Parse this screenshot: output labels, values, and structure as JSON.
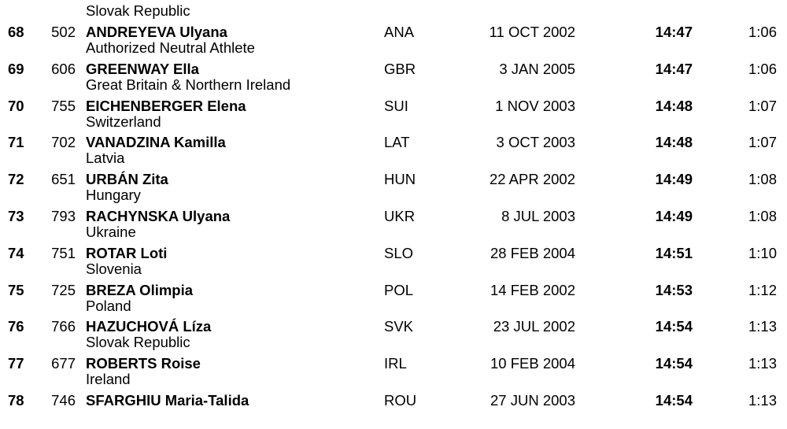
{
  "top_continuation": "Slovak Republic",
  "rows": [
    {
      "rank": "68",
      "bib": "502",
      "name": "ANDREYEVA Ulyana",
      "nation": "Authorized Neutral Athlete",
      "code": "ANA",
      "dob": "11 OCT 2002",
      "time": "14:47",
      "gap": "1:06"
    },
    {
      "rank": "69",
      "bib": "606",
      "name": "GREENWAY Ella",
      "nation": "Great Britain & Northern Ireland",
      "code": "GBR",
      "dob": "3 JAN 2005",
      "time": "14:47",
      "gap": "1:06"
    },
    {
      "rank": "70",
      "bib": "755",
      "name": "EICHENBERGER Elena",
      "nation": "Switzerland",
      "code": "SUI",
      "dob": "1 NOV 2003",
      "time": "14:48",
      "gap": "1:07"
    },
    {
      "rank": "71",
      "bib": "702",
      "name": "VANADZINA Kamilla",
      "nation": "Latvia",
      "code": "LAT",
      "dob": "3 OCT 2003",
      "time": "14:48",
      "gap": "1:07"
    },
    {
      "rank": "72",
      "bib": "651",
      "name": "URBÁN Zita",
      "nation": "Hungary",
      "code": "HUN",
      "dob": "22 APR 2002",
      "time": "14:49",
      "gap": "1:08"
    },
    {
      "rank": "73",
      "bib": "793",
      "name": "RACHYNSKA Ulyana",
      "nation": "Ukraine",
      "code": "UKR",
      "dob": "8 JUL 2003",
      "time": "14:49",
      "gap": "1:08"
    },
    {
      "rank": "74",
      "bib": "751",
      "name": "ROTAR Loti",
      "nation": "Slovenia",
      "code": "SLO",
      "dob": "28 FEB 2004",
      "time": "14:51",
      "gap": "1:10"
    },
    {
      "rank": "75",
      "bib": "725",
      "name": "BREZA Olimpia",
      "nation": "Poland",
      "code": "POL",
      "dob": "14 FEB 2002",
      "time": "14:53",
      "gap": "1:12"
    },
    {
      "rank": "76",
      "bib": "766",
      "name": "HAZUCHOVÁ Líza",
      "nation": "Slovak Republic",
      "code": "SVK",
      "dob": "23 JUL 2002",
      "time": "14:54",
      "gap": "1:13"
    },
    {
      "rank": "77",
      "bib": "677",
      "name": "ROBERTS Roise",
      "nation": "Ireland",
      "code": "IRL",
      "dob": "10 FEB 2004",
      "time": "14:54",
      "gap": "1:13"
    },
    {
      "rank": "78",
      "bib": "746",
      "name": "SFARGHIU Maria-Talida",
      "nation": "",
      "code": "ROU",
      "dob": "27 JUN 2003",
      "time": "14:54",
      "gap": "1:13"
    }
  ]
}
